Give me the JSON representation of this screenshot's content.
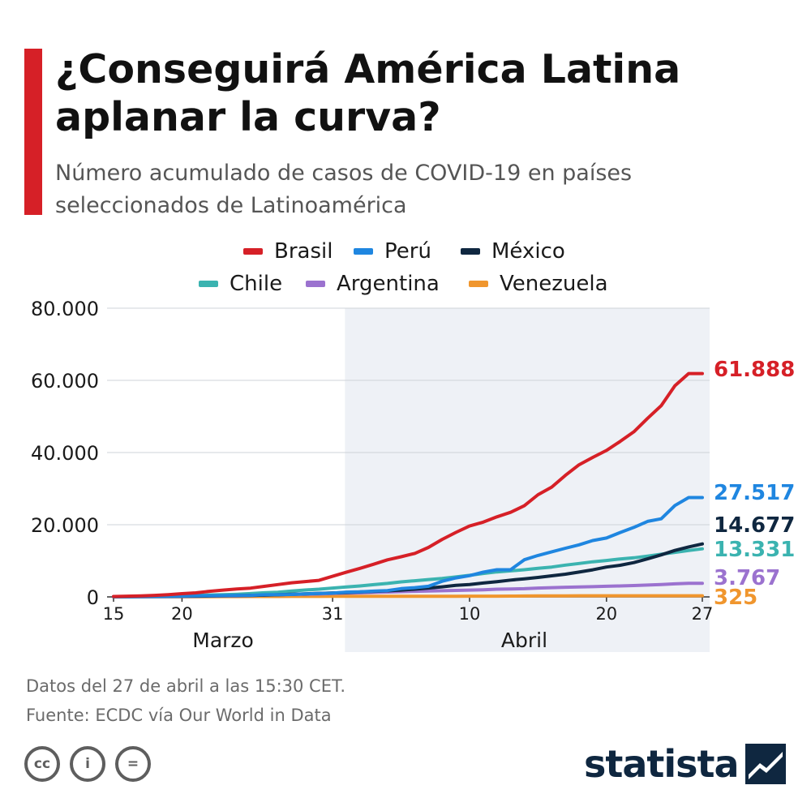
{
  "header": {
    "title": "¿Conseguirá América Latina aplanar la curva?",
    "subtitle": "Número acumulado de casos de COVID-19 en países seleccionados de Latinoamérica",
    "accent_color": "#d62027"
  },
  "legend": {
    "items": [
      {
        "label": "Brasil",
        "color": "#d62027"
      },
      {
        "label": "Perú",
        "color": "#1f86e0"
      },
      {
        "label": "México",
        "color": "#0f2740"
      },
      {
        "label": "Chile",
        "color": "#3bb3b0"
      },
      {
        "label": "Argentina",
        "color": "#9b72cf"
      },
      {
        "label": "Venezuela",
        "color": "#f0962e"
      }
    ]
  },
  "chart_data": {
    "type": "line",
    "title": "",
    "xlabel": "",
    "ylabel": "",
    "x_start": "15 de marzo",
    "x_end": "27 de abril",
    "x_range": [
      0,
      43
    ],
    "ylim": [
      0,
      80000
    ],
    "y_ticks": [
      0,
      20000,
      40000,
      60000,
      80000
    ],
    "y_tick_labels": [
      "0",
      "20.000",
      "40.000",
      "60.000",
      "80.000"
    ],
    "x_ticks": [
      {
        "day": 0,
        "label": "15"
      },
      {
        "day": 5,
        "label": "20"
      },
      {
        "day": 16,
        "label": "31"
      },
      {
        "day": 26,
        "label": "10"
      },
      {
        "day": 36,
        "label": "20"
      },
      {
        "day": 43,
        "label": "27"
      }
    ],
    "month_labels": [
      {
        "label": "Marzo",
        "center_day": 8
      },
      {
        "label": "Abril",
        "center_day": 30
      }
    ],
    "highlight_range": [
      16.9,
      43
    ],
    "grid": true,
    "series": [
      {
        "name": "Brasil",
        "color": "#d62027",
        "end_label": "61.888",
        "values": [
          121,
          200,
          291,
          428,
          621,
          904,
          1128,
          1546,
          1891,
          2201,
          2433,
          2915,
          3417,
          3904,
          4256,
          4579,
          5717,
          6836,
          7910,
          9056,
          10278,
          11130,
          12056,
          13717,
          15927,
          17857,
          19638,
          20727,
          22169,
          23430,
          25262,
          28320,
          30425,
          33682,
          36599,
          38654,
          40581,
          43079,
          45757,
          49492,
          52995,
          58509,
          61888,
          61888
        ]
      },
      {
        "name": "Perú",
        "color": "#1f86e0",
        "end_label": "27.517",
        "values": [
          43,
          71,
          86,
          117,
          145,
          234,
          263,
          318,
          363,
          395,
          416,
          580,
          635,
          671,
          852,
          950,
          1065,
          1323,
          1414,
          1595,
          1746,
          2281,
          2561,
          2954,
          4342,
          5256,
          5897,
          6848,
          7519,
          7519,
          10303,
          11475,
          12491,
          13489,
          14420,
          15628,
          16325,
          17837,
          19250,
          20914,
          21648,
          25331,
          27517,
          27517
        ]
      },
      {
        "name": "México",
        "color": "#0f2740",
        "end_label": "14.677",
        "values": [
          41,
          53,
          82,
          93,
          118,
          164,
          203,
          251,
          316,
          367,
          405,
          475,
          585,
          717,
          848,
          993,
          1094,
          1215,
          1378,
          1510,
          1688,
          1890,
          2143,
          2439,
          2785,
          3181,
          3441,
          3844,
          4219,
          4661,
          5014,
          5399,
          5847,
          6297,
          6875,
          7497,
          8261,
          8772,
          9501,
          10544,
          11633,
          12872,
          13842,
          14677
        ]
      },
      {
        "name": "Chile",
        "color": "#3bb3b0",
        "end_label": "13.331",
        "values": [
          61,
          75,
          156,
          201,
          238,
          342,
          434,
          537,
          632,
          746,
          922,
          1142,
          1306,
          1610,
          1909,
          2139,
          2449,
          2738,
          3031,
          3404,
          3737,
          4161,
          4471,
          4815,
          5116,
          5546,
          5972,
          6501,
          6927,
          7213,
          7525,
          7917,
          8273,
          8807,
          9252,
          9730,
          10088,
          10507,
          10832,
          11296,
          11812,
          12306,
          12858,
          13331
        ]
      },
      {
        "name": "Argentina",
        "color": "#9b72cf",
        "end_label": "3.767",
        "values": [
          45,
          56,
          65,
          79,
          97,
          128,
          158,
          225,
          266,
          301,
          387,
          502,
          589,
          690,
          745,
          820,
          966,
          1054,
          1133,
          1265,
          1353,
          1451,
          1554,
          1628,
          1715,
          1795,
          1894,
          1975,
          2142,
          2208,
          2277,
          2443,
          2571,
          2669,
          2758,
          2839,
          2941,
          3031,
          3144,
          3288,
          3435,
          3607,
          3767,
          3767
        ]
      },
      {
        "name": "Venezuela",
        "color": "#f0962e",
        "end_label": "325",
        "values": [
          10,
          17,
          33,
          36,
          42,
          42,
          70,
          77,
          84,
          91,
          106,
          107,
          119,
          135,
          143,
          146,
          153,
          155,
          159,
          165,
          166,
          167,
          171,
          181,
          189,
          189,
          193,
          197,
          204,
          227,
          256,
          285,
          288,
          298,
          311,
          318,
          323,
          325,
          325,
          325,
          325,
          325,
          325,
          325
        ]
      }
    ]
  },
  "footer": {
    "data_note": "Datos del 27 de abril a las 15:30 CET.",
    "source": "Fuente: ECDC vía Our World in Data"
  },
  "license": {
    "cc_label": "cc",
    "by_label": "i",
    "nd_label": "="
  },
  "brand": {
    "name": "statista"
  }
}
